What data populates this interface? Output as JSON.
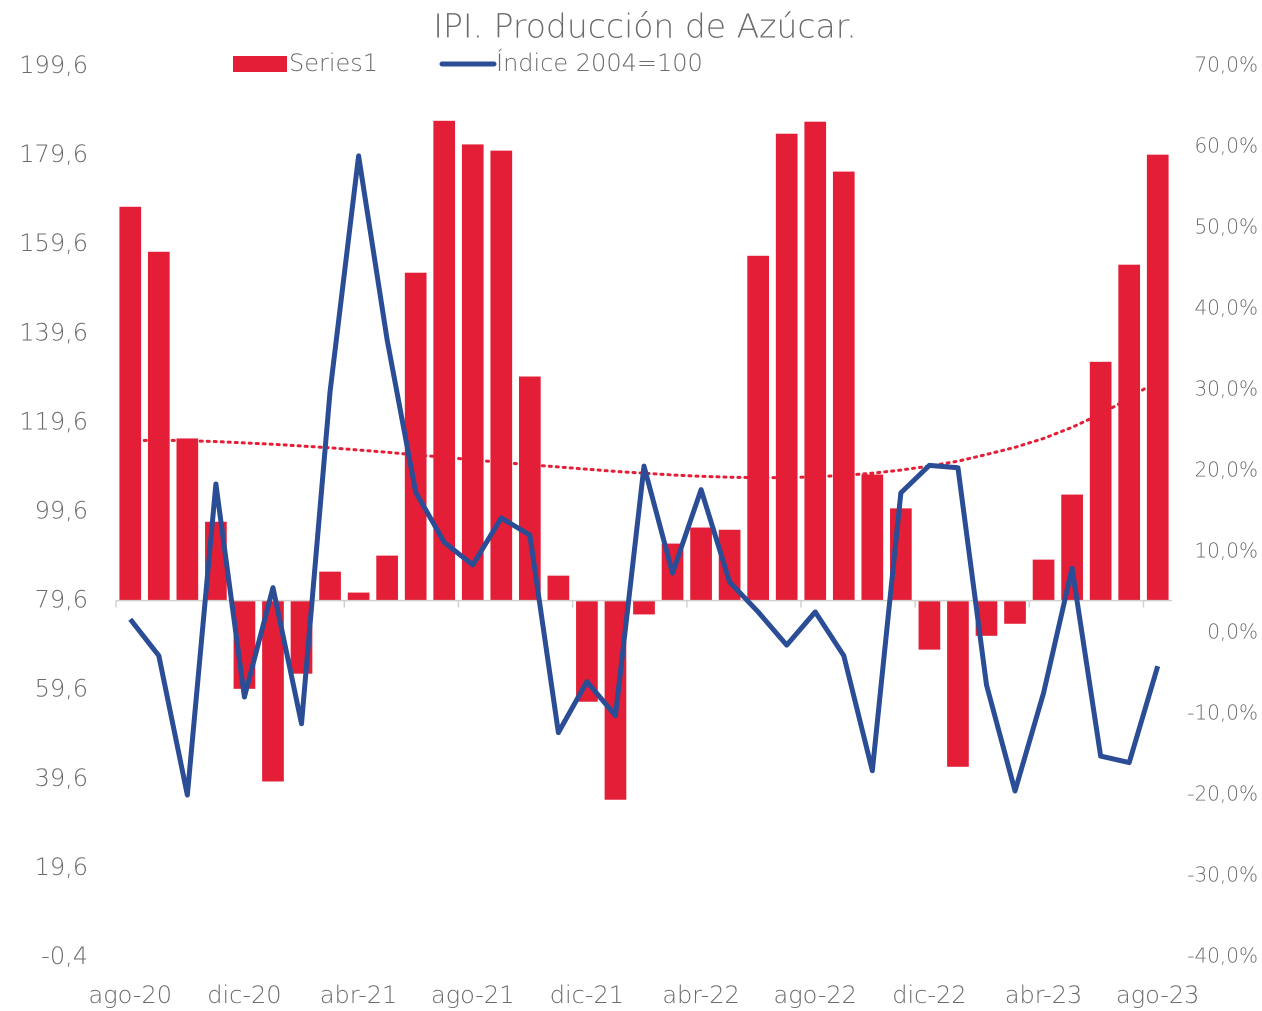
{
  "chart_data": {
    "type": "bar",
    "title": "IPI. Producción de Azúcar.",
    "categories": [
      "ago-20",
      null,
      null,
      null,
      "dic-20",
      null,
      null,
      null,
      "abr-21",
      null,
      null,
      null,
      "ago-21",
      null,
      null,
      null,
      "dic-21",
      null,
      null,
      null,
      "abr-22",
      null,
      null,
      null,
      "ago-22",
      null,
      null,
      null,
      "dic-22",
      null,
      null,
      null,
      "abr-23",
      null,
      null,
      null,
      "ago-23"
    ],
    "series": [
      {
        "name": "Series1",
        "type": "bar",
        "color": "#e31e36",
        "values": [
          168.0,
          157.9,
          116.0,
          97.3,
          59.8,
          39.0,
          63.2,
          86.1,
          81.4,
          89.7,
          153.2,
          187.3,
          182.0,
          180.6,
          129.9,
          85.2,
          56.9,
          34.9,
          76.5,
          92.4,
          96.0,
          95.5,
          157.0,
          184.4,
          187.1,
          175.9,
          107.9,
          100.3,
          68.6,
          42.3,
          71.7,
          74.4,
          88.8,
          103.4,
          133.2,
          155.0,
          179.7
        ]
      },
      {
        "name": "Índice 2004=100",
        "type": "line",
        "axis": "y2",
        "color": "#2a4d96",
        "values": [
          1.7,
          -2.8,
          -20.0,
          18.4,
          -7.9,
          5.6,
          -11.2,
          29.8,
          58.9,
          36.2,
          17.4,
          11.2,
          8.4,
          14.2,
          12.1,
          -12.3,
          -6.0,
          -10.2,
          20.6,
          7.4,
          17.7,
          6.3,
          2.6,
          -1.5,
          2.6,
          -2.8,
          -17.0,
          17.3,
          20.7,
          20.4,
          -6.4,
          -19.5,
          -7.4,
          8.0,
          -15.2,
          -16.0,
          -4.1
        ]
      }
    ],
    "trendline": {
      "color": "#e31e36",
      "values": [
        115.5,
        115.6,
        115.5,
        115.3,
        115.0,
        114.7,
        114.3,
        113.9,
        113.4,
        112.9,
        112.3,
        111.8,
        111.2,
        110.6,
        110.1,
        109.6,
        109.1,
        108.6,
        108.2,
        107.8,
        107.5,
        107.3,
        107.2,
        107.2,
        107.4,
        107.7,
        108.2,
        108.9,
        109.8,
        110.9,
        112.4,
        114.0,
        116.0,
        118.5,
        121.5,
        125.0,
        129.0
      ]
    },
    "x_axis_at": 79.6,
    "ylim": [
      -0.4,
      199.6
    ],
    "yticks": [
      {
        "value": -0.4,
        "label": "-0,4"
      },
      {
        "value": 19.6,
        "label": "19,6"
      },
      {
        "value": 39.6,
        "label": "39,6"
      },
      {
        "value": 59.6,
        "label": "59,6"
      },
      {
        "value": 79.6,
        "label": "79,6"
      },
      {
        "value": 99.6,
        "label": "99,6"
      },
      {
        "value": 119.6,
        "label": "119,6"
      },
      {
        "value": 139.6,
        "label": "139,6"
      },
      {
        "value": 159.6,
        "label": "159,6"
      },
      {
        "value": 179.6,
        "label": "179,6"
      },
      {
        "value": 199.6,
        "label": "199,6"
      }
    ],
    "y2lim": [
      -40,
      70
    ],
    "y2ticks": [
      {
        "value": -40,
        "label": "-40,0%"
      },
      {
        "value": -30,
        "label": "-30,0%"
      },
      {
        "value": -20,
        "label": "-20,0%"
      },
      {
        "value": -10,
        "label": "-10,0%"
      },
      {
        "value": 0,
        "label": "0,0%"
      },
      {
        "value": 10,
        "label": "10,0%"
      },
      {
        "value": 20,
        "label": "20,0%"
      },
      {
        "value": 30,
        "label": "30,0%"
      },
      {
        "value": 40,
        "label": "40,0%"
      },
      {
        "value": 50,
        "label": "50,0%"
      },
      {
        "value": 60,
        "label": "60,0%"
      },
      {
        "value": 70,
        "label": "70,0%"
      }
    ],
    "legend": "top"
  }
}
